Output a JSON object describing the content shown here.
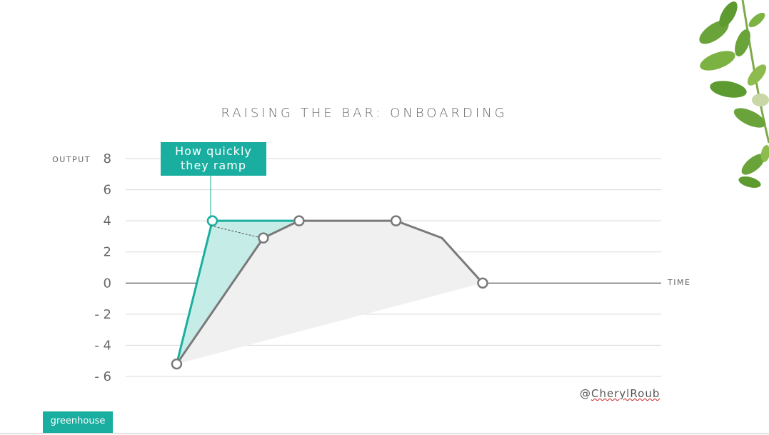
{
  "slide": {
    "handle_prefix": "@",
    "handle_name": "CherylRoub",
    "brand": "greenhouse"
  },
  "colors": {
    "accent": "#1aaea0",
    "accent_fill": "#c6ece7",
    "gray_line": "#7a7a7a",
    "gray_fill": "#f0f0f0"
  },
  "decoration": {
    "leaves": "leaf-branch-icon"
  },
  "chart_data": {
    "type": "line",
    "title": "RAISING THE BAR: ONBOARDING",
    "ylabel": "OUTPUT",
    "xlabel": "TIME",
    "ylim": [
      -6,
      8
    ],
    "y_ticks": [
      8,
      6,
      4,
      2,
      0,
      -2,
      -4,
      -6
    ],
    "y_tick_labels": [
      "8",
      "6",
      "4",
      "2",
      "0",
      "- 2",
      "- 4",
      "- 6"
    ],
    "grid": true,
    "annotation": "How quickly they ramp",
    "series": [
      {
        "color": "#7a7a7a",
        "fill": "#f0f0f0",
        "points": [
          [
            1.0,
            -5.2
          ],
          [
            2.7,
            2.9
          ],
          [
            3.4,
            4.0
          ],
          [
            5.3,
            4.0
          ],
          [
            6.2,
            2.9
          ],
          [
            7.0,
            0.0
          ]
        ],
        "markers": [
          0,
          1,
          2,
          3,
          5
        ]
      },
      {
        "color": "#1aaea0",
        "fill": "#c6ece7",
        "points": [
          [
            1.0,
            -5.2
          ],
          [
            1.7,
            4.0
          ],
          [
            3.4,
            4.0
          ]
        ],
        "markers": [
          1
        ]
      }
    ],
    "xlim": [
      0,
      10.5
    ]
  }
}
